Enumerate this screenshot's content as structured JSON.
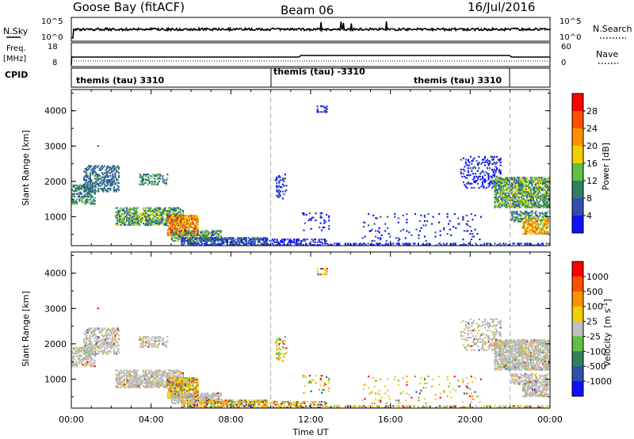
{
  "header": {
    "station": "Goose Bay (fitACF)",
    "beam": "Beam 06",
    "date": "16/Jul/2016"
  },
  "noise_panel": {
    "left_label": "N.Sky",
    "right_label": "N.Search",
    "left_ticks": [
      "10^5",
      "10^0"
    ],
    "right_ticks": [
      "10^5",
      "10^0"
    ]
  },
  "freq_panel": {
    "left_label_1": "Freq.",
    "left_label_2": "[MHz]",
    "right_label": "Nave",
    "left_ticks": [
      "18",
      "8"
    ],
    "right_ticks": [
      "60",
      "0"
    ]
  },
  "cpid_panel": {
    "label": "CPID",
    "segments": [
      {
        "label": "themis (tau) 3310",
        "start_h": 0,
        "end_h": 10
      },
      {
        "label": "themis (tau) -3310",
        "start_h": 10,
        "end_h": 22
      },
      {
        "label": "themis (tau) 3310",
        "start_h": 14.5,
        "end_h": 22
      }
    ]
  },
  "colors": {
    "power": [
      "#1010ff",
      "#3050b0",
      "#308060",
      "#60c040",
      "#f0d000",
      "#ff9000",
      "#ff5000",
      "#ff0000"
    ],
    "velocity": [
      "#1010ff",
      "#3050b0",
      "#308060",
      "#60c040",
      "#c0c0c0",
      "#f0d000",
      "#ff9000",
      "#ff5000",
      "#ff0000"
    ],
    "ground": "#b8b8b0"
  },
  "power_colorbar": {
    "label": "Power [dB]",
    "ticks": [
      "28",
      "24",
      "20",
      "16",
      "12",
      "8",
      "4"
    ]
  },
  "velocity_colorbar": {
    "label_main": "Velocity",
    "label_unit": "[m s",
    "label_exp": "-1",
    "label_close": "]",
    "ticks": [
      "1000",
      "500",
      "100",
      "25",
      "-25",
      "-100",
      "-500",
      "-1000"
    ]
  },
  "chart_data": {
    "type": "heatmap",
    "title": "Goose Bay (fitACF)  Beam 06  16/Jul/2016",
    "xlabel": "Time UT",
    "ylabel": "Slant Range [km]",
    "x_ticks": [
      "00:00",
      "04:00",
      "08:00",
      "12:00",
      "16:00",
      "20:00",
      "00:00"
    ],
    "xlim_hours": [
      0,
      24
    ],
    "y_ticks": [
      "1000",
      "2000",
      "3000",
      "4000"
    ],
    "ylim_km": [
      180,
      4600
    ],
    "grid": false,
    "power_features": [
      {
        "t0": 0.0,
        "t1": 2.4,
        "r0": 1300,
        "r1": 2400,
        "level": 2,
        "note": "band"
      },
      {
        "t0": 2.2,
        "t1": 5.5,
        "r0": 750,
        "r1": 1250,
        "level": 3
      },
      {
        "t0": 4.8,
        "t1": 6.3,
        "r0": 450,
        "r1": 1050,
        "level": 6
      },
      {
        "t0": 5.5,
        "t1": 9.5,
        "r0": 180,
        "r1": 450,
        "level": 2
      },
      {
        "t0": 9.0,
        "t1": 23.9,
        "r0": 180,
        "r1": 300,
        "level": 1
      },
      {
        "t0": 21.2,
        "t1": 23.9,
        "r0": 1200,
        "r1": 2100,
        "level": 3
      },
      {
        "t0": 22.5,
        "t1": 23.9,
        "r0": 500,
        "r1": 1000,
        "level": 5
      }
    ]
  }
}
